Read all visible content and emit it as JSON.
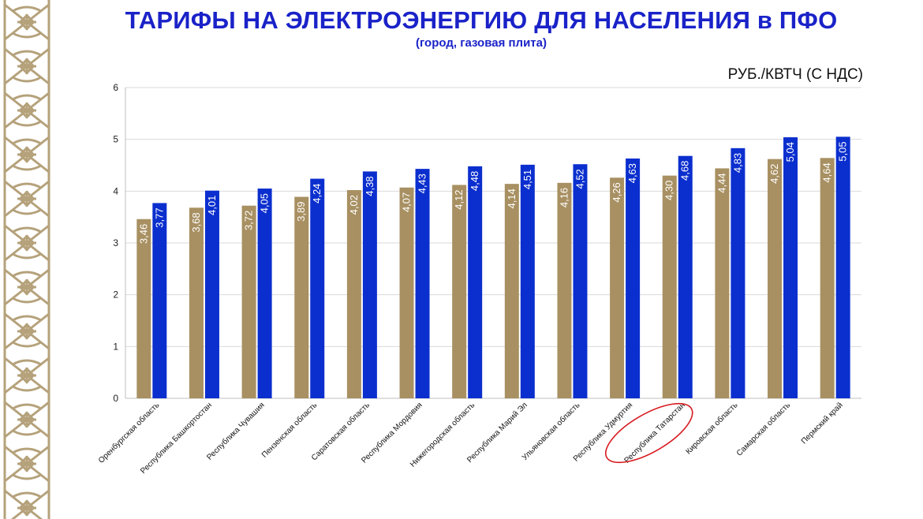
{
  "header": {
    "title": "ТАРИФЫ НА ЭЛЕКТРОЭНЕРГИЮ ДЛЯ НАСЕЛЕНИЯ в ПФО",
    "subtitle": "(город, газовая плита)",
    "unit": "РУБ./КВТЧ (С НДС)"
  },
  "colors": {
    "series_1": "#a89062",
    "series_2": "#0b2fce",
    "gridline": "#d9d9d9",
    "highlight_ellipse": "#d8191f",
    "title": "#1a22c8",
    "ornament": "#b5a27b"
  },
  "chart_data": {
    "type": "bar",
    "title": "",
    "xlabel": "",
    "ylabel": "",
    "ylim": [
      0,
      6
    ],
    "yticks": [
      0,
      1,
      2,
      3,
      4,
      5,
      6
    ],
    "grid": true,
    "highlighted_category": "Республика Татарстан",
    "categories": [
      "Оренбургская область",
      "Республика Башкортостан",
      "Республика Чувашия",
      "Пензенская область",
      "Саратовская область",
      "Республика Мордовия",
      "Нижегородская область",
      "Республика Марий Эл",
      "Ульяновская область",
      "Республика Удмуртия",
      "Республика Татарстан",
      "Кировская область",
      "Самарская область",
      "Пермский край"
    ],
    "series": [
      {
        "values": [
          3.46,
          3.68,
          3.72,
          3.89,
          4.02,
          4.07,
          4.12,
          4.14,
          4.16,
          4.26,
          4.3,
          4.44,
          4.62,
          4.64
        ],
        "labels": [
          "3,46",
          "3,68",
          "3,72",
          "3,89",
          "4,02",
          "4,07",
          "4,12",
          "4,14",
          "4,16",
          "4,26",
          "4,30",
          "4,44",
          "4,62",
          "4,64"
        ]
      },
      {
        "values": [
          3.77,
          4.01,
          4.05,
          4.24,
          4.38,
          4.43,
          4.48,
          4.51,
          4.52,
          4.63,
          4.68,
          4.83,
          5.04,
          5.05
        ],
        "labels": [
          "3,77",
          "4,01",
          "4,05",
          "4,24",
          "4,38",
          "4,43",
          "4,48",
          "4,51",
          "4,52",
          "4,63",
          "4,68",
          "4,83",
          "5,04",
          "5,05"
        ]
      }
    ]
  }
}
